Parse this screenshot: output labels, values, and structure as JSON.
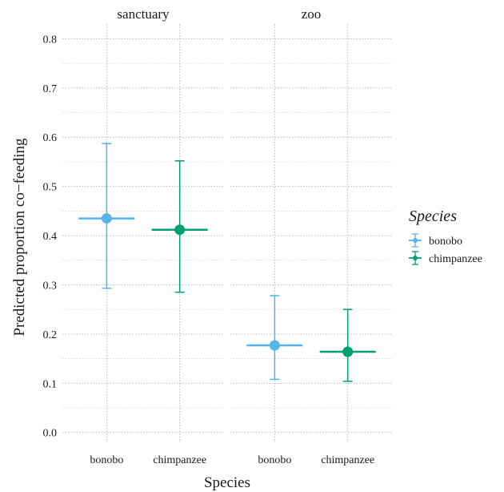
{
  "chart_data": {
    "type": "pointrange",
    "xlabel": "Species",
    "ylabel": "Predicted proportion co−feeding",
    "ylim": [
      -0.02,
      0.83
    ],
    "yticks": [
      0.0,
      0.1,
      0.2,
      0.3,
      0.4,
      0.5,
      0.6,
      0.7,
      0.8
    ],
    "ytick_labels": [
      "0.0",
      "0.1",
      "0.2",
      "0.3",
      "0.4",
      "0.5",
      "0.6",
      "0.7",
      "0.8"
    ],
    "categories": [
      "bonobo",
      "chimpanzee"
    ],
    "grid": true,
    "facets": [
      {
        "name": "sanctuary",
        "points": [
          {
            "species": "bonobo",
            "estimate": 0.435,
            "lower": 0.293,
            "upper": 0.587
          },
          {
            "species": "chimpanzee",
            "estimate": 0.412,
            "lower": 0.285,
            "upper": 0.552
          }
        ]
      },
      {
        "name": "zoo",
        "points": [
          {
            "species": "bonobo",
            "estimate": 0.177,
            "lower": 0.108,
            "upper": 0.278
          },
          {
            "species": "chimpanzee",
            "estimate": 0.164,
            "lower": 0.104,
            "upper": 0.25
          }
        ]
      }
    ],
    "legend": {
      "title": "Species",
      "placement": "right",
      "entries": [
        {
          "label": "bonobo",
          "color": "#56B4E9"
        },
        {
          "label": "chimpanzee",
          "color": "#009E73"
        }
      ]
    }
  }
}
